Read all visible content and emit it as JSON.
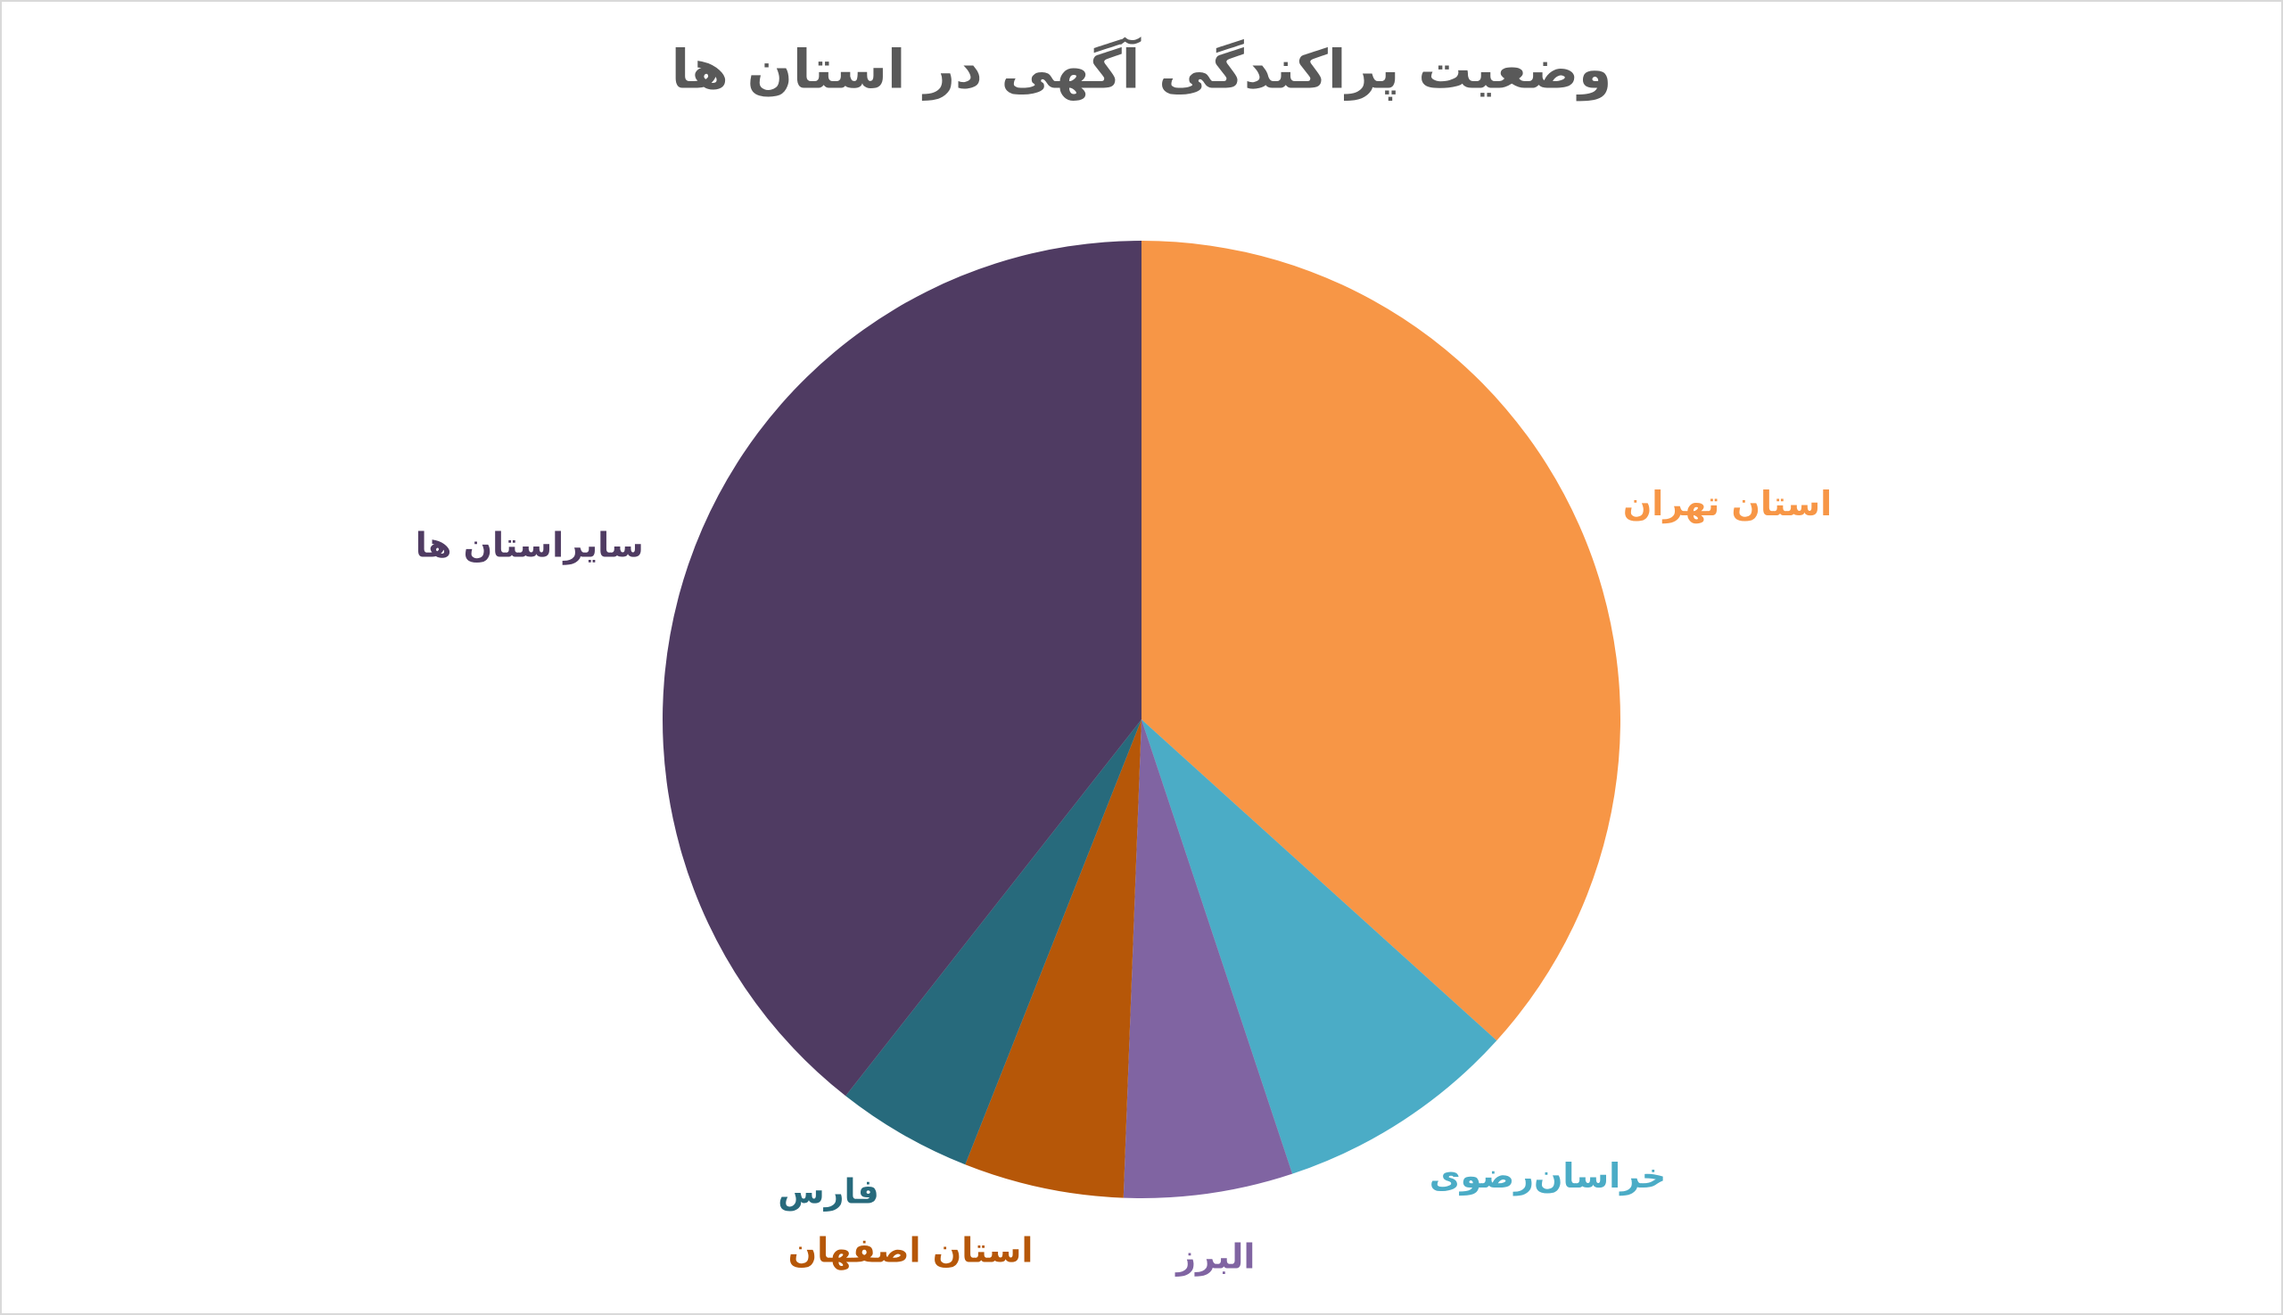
{
  "chart_data": {
    "type": "pie",
    "title": "وضعیت پراکندگی آگهی در استان ها",
    "categories": [
      "استان تهران",
      "خراسان‌رضوی",
      "البرز",
      "استان اصفهان",
      "فارس",
      "سایراستان ها"
    ],
    "values": [
      36.7,
      8.2,
      5.7,
      5.4,
      4.6,
      39.4
    ],
    "colors": [
      "#F79646",
      "#4BACC6",
      "#8064A2",
      "#B65708",
      "#276A7C",
      "#4F3B62"
    ]
  }
}
